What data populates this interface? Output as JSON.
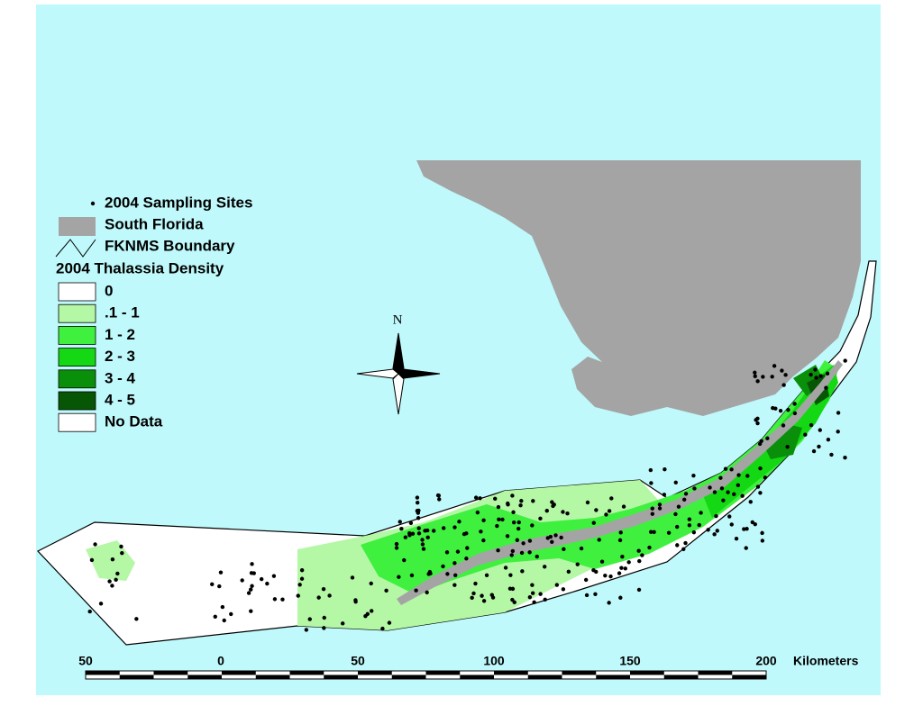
{
  "legend": {
    "symbols": [
      {
        "label": "2004 Sampling Sites"
      },
      {
        "label": "South Florida"
      },
      {
        "label": "FKNMS Boundary"
      }
    ],
    "title": "2004 Thalassia Density",
    "classes": [
      {
        "label": "0",
        "color": "#ffffff"
      },
      {
        "label": ".1 - 1",
        "color": "#b4f7a5"
      },
      {
        "label": "1 - 2",
        "color": "#3ff03f"
      },
      {
        "label": "2 - 3",
        "color": "#14d814"
      },
      {
        "label": "3 - 4",
        "color": "#0a8f0a"
      },
      {
        "label": " 4 - 5",
        "color": "#065606"
      },
      {
        "label": "No Data",
        "color": "#ffffff"
      }
    ]
  },
  "north": "N",
  "scale": {
    "labels": [
      "50",
      "0",
      "50",
      "100",
      "150",
      "200"
    ],
    "unit": "Kilometers"
  }
}
